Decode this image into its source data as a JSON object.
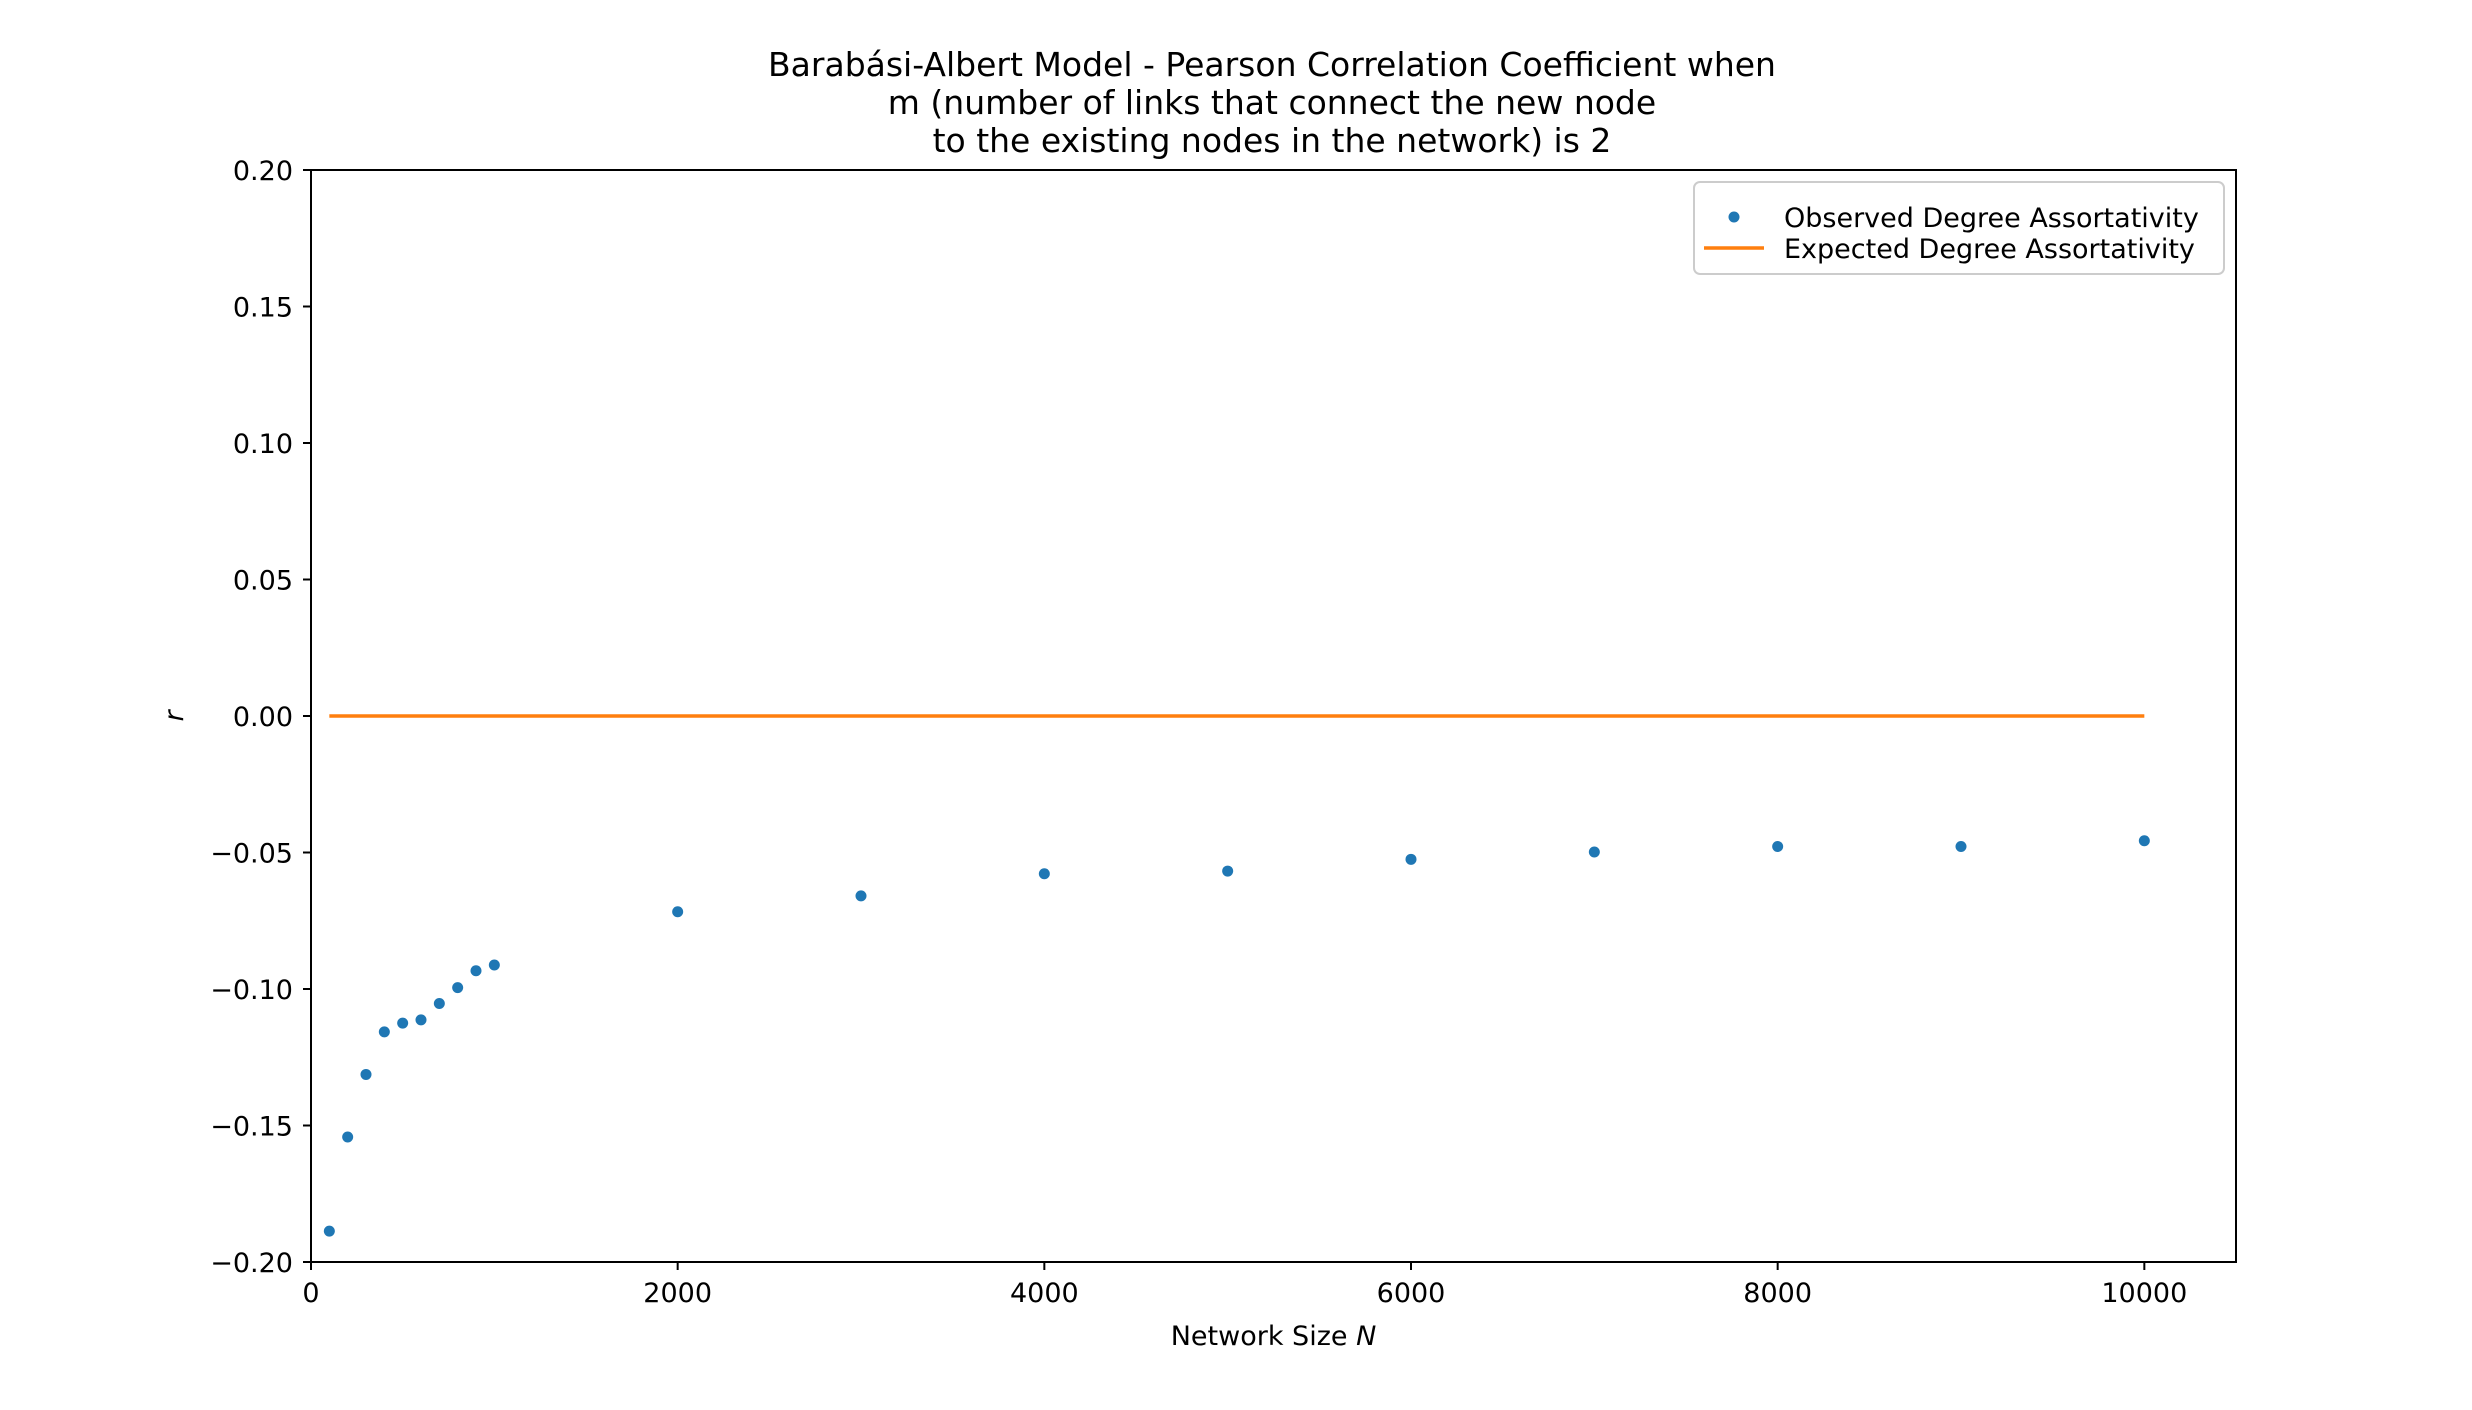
{
  "chart_data": {
    "type": "scatter",
    "title_lines": [
      "Barabási-Albert Model - Pearson Correlation Coefficient when",
      "m (number of links that connect the new node",
      "to the existing nodes in the network) is 2"
    ],
    "xlabel": "Network Size ",
    "xlabel_var": "N",
    "ylabel": "r",
    "xlim": [
      0,
      10500
    ],
    "ylim": [
      -0.2,
      0.2
    ],
    "x_ticks": [
      0,
      2000,
      4000,
      6000,
      8000,
      10000
    ],
    "x_tick_labels": [
      "0",
      "2000",
      "4000",
      "6000",
      "8000",
      "10000"
    ],
    "y_ticks": [
      -0.2,
      -0.15,
      -0.1,
      -0.05,
      0.0,
      0.05,
      0.1,
      0.15,
      0.2
    ],
    "y_tick_labels": [
      "−0.20",
      "−0.15",
      "−0.10",
      "−0.05",
      "0.00",
      "0.05",
      "0.10",
      "0.15",
      "0.20"
    ],
    "grid": false,
    "legend_position": "upper right",
    "series": [
      {
        "name": "Observed Degree Assortativity",
        "kind": "markers",
        "color": "#1f77b4",
        "x": [
          100,
          200,
          300,
          400,
          500,
          600,
          700,
          800,
          900,
          1000,
          2000,
          3000,
          4000,
          5000,
          6000,
          7000,
          8000,
          9000,
          10000
        ],
        "y": [
          -0.1887,
          -0.1542,
          -0.1313,
          -0.1157,
          -0.1125,
          -0.1113,
          -0.1053,
          -0.0995,
          -0.0933,
          -0.0912,
          -0.0717,
          -0.0659,
          -0.0578,
          -0.0568,
          -0.0525,
          -0.0498,
          -0.0478,
          -0.0478,
          -0.0457
        ]
      },
      {
        "name": "Expected Degree Assortativity",
        "kind": "line",
        "color": "#ff7f0e",
        "x": [
          100,
          10000
        ],
        "y": [
          0.0,
          0.0
        ]
      }
    ]
  }
}
